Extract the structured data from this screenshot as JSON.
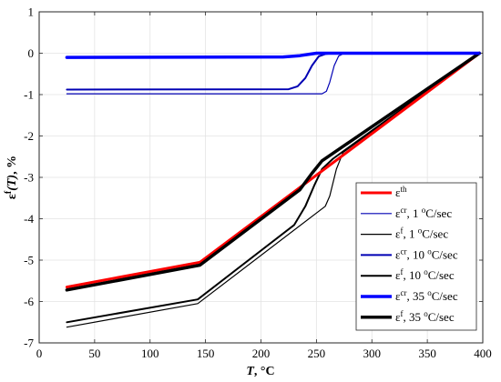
{
  "chart_data": {
    "type": "line",
    "xlabel": "T, °C",
    "ylabel": "εf(T), %",
    "xlim": [
      0,
      400
    ],
    "ylim": [
      -7,
      1
    ],
    "xticks": [
      0,
      50,
      100,
      150,
      200,
      250,
      300,
      350,
      400
    ],
    "yticks": [
      -7,
      -6,
      -5,
      -4,
      -3,
      -2,
      -1,
      0,
      1
    ],
    "grid": true,
    "legend_position": "bottom-right",
    "series": [
      {
        "name": "εth",
        "color": "#ff0000",
        "width": 3,
        "points": [
          [
            25,
            -5.65
          ],
          [
            145,
            -5.05
          ],
          [
            397,
            0
          ]
        ]
      },
      {
        "name": "εcr, 1 °C/sec",
        "color": "#0000b4",
        "width": 1.2,
        "points": [
          [
            25,
            -0.98
          ],
          [
            255,
            -0.98
          ],
          [
            259,
            -0.92
          ],
          [
            262,
            -0.7
          ],
          [
            266,
            -0.3
          ],
          [
            270,
            -0.07
          ],
          [
            275,
            0
          ],
          [
            397,
            0
          ]
        ]
      },
      {
        "name": "εf, 1 °C/sec",
        "color": "#000000",
        "width": 1.2,
        "points": [
          [
            25,
            -6.62
          ],
          [
            143,
            -6.05
          ],
          [
            258,
            -3.7
          ],
          [
            262,
            -3.45
          ],
          [
            268,
            -2.8
          ],
          [
            274,
            -2.4
          ],
          [
            397,
            0
          ]
        ]
      },
      {
        "name": "εcr, 10 °C/sec",
        "color": "#0000b4",
        "width": 2,
        "points": [
          [
            25,
            -0.88
          ],
          [
            225,
            -0.87
          ],
          [
            233,
            -0.8
          ],
          [
            240,
            -0.6
          ],
          [
            246,
            -0.3
          ],
          [
            252,
            -0.08
          ],
          [
            258,
            -0.02
          ],
          [
            265,
            0
          ],
          [
            397,
            0
          ]
        ]
      },
      {
        "name": "εf, 10 °C/sec",
        "color": "#000000",
        "width": 2,
        "points": [
          [
            25,
            -6.5
          ],
          [
            143,
            -5.95
          ],
          [
            230,
            -4.15
          ],
          [
            240,
            -3.7
          ],
          [
            248,
            -3.2
          ],
          [
            255,
            -2.8
          ],
          [
            265,
            -2.55
          ],
          [
            397,
            0
          ]
        ]
      },
      {
        "name": "εcr, 35 °C/sec",
        "color": "#0000ff",
        "width": 3.5,
        "points": [
          [
            25,
            -0.1
          ],
          [
            220,
            -0.09
          ],
          [
            235,
            -0.06
          ],
          [
            245,
            -0.02
          ],
          [
            250,
            0
          ],
          [
            397,
            0
          ]
        ]
      },
      {
        "name": "εf, 35 °C/sec",
        "color": "#000000",
        "width": 3.5,
        "points": [
          [
            25,
            -5.72
          ],
          [
            145,
            -5.12
          ],
          [
            235,
            -3.3
          ],
          [
            246,
            -2.9
          ],
          [
            255,
            -2.6
          ],
          [
            397,
            0
          ]
        ]
      }
    ]
  },
  "axes_text": {
    "xlabel_main": "T",
    "xlabel_unit": ", °C",
    "ylabel_eps": "ε",
    "ylabel_sup": "f",
    "ylabel_arg": "(T)",
    "ylabel_unit": ", %"
  },
  "legend": [
    {
      "base": "ε",
      "sup": "th",
      "rest": "",
      "deg": "",
      "tail": ""
    },
    {
      "base": "ε",
      "sup": "cr",
      "rest": ", 1 ",
      "deg": "o",
      "tail": "C/sec"
    },
    {
      "base": "ε",
      "sup": "f",
      "rest": ", 1 ",
      "deg": "o",
      "tail": "C/sec"
    },
    {
      "base": "ε",
      "sup": "cr",
      "rest": ", 10 ",
      "deg": "o",
      "tail": "C/sec"
    },
    {
      "base": "ε",
      "sup": "f",
      "rest": ", 10 ",
      "deg": "o",
      "tail": "C/sec"
    },
    {
      "base": "ε",
      "sup": "cr",
      "rest": ", 35 ",
      "deg": "o",
      "tail": "C/sec"
    },
    {
      "base": "ε",
      "sup": "f",
      "rest": ", 35 ",
      "deg": "o",
      "tail": "C/sec"
    }
  ]
}
